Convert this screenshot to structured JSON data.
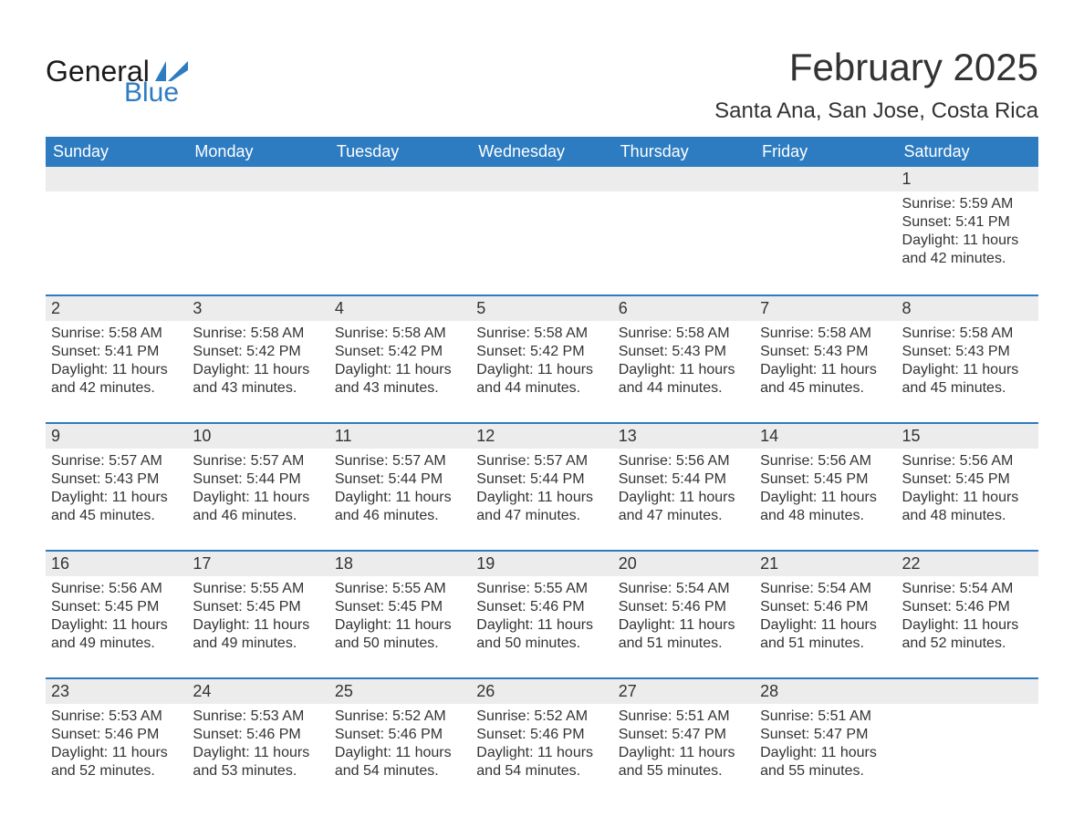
{
  "logo": {
    "word1": "General",
    "word2": "Blue",
    "text_color": "#1a1a1a",
    "accent_color": "#2d7cc1"
  },
  "header": {
    "month_year": "February 2025",
    "location": "Santa Ana, San Jose, Costa Rica"
  },
  "colors": {
    "header_bg": "#2d7cc1",
    "header_fg": "#ffffff",
    "daynum_bg": "#ececec",
    "row_divider": "#2d7cc1",
    "text": "#333333",
    "background": "#ffffff"
  },
  "days_of_week": [
    "Sunday",
    "Monday",
    "Tuesday",
    "Wednesday",
    "Thursday",
    "Friday",
    "Saturday"
  ],
  "weeks": [
    [
      {
        "day": ""
      },
      {
        "day": ""
      },
      {
        "day": ""
      },
      {
        "day": ""
      },
      {
        "day": ""
      },
      {
        "day": ""
      },
      {
        "day": "1",
        "sunrise": "Sunrise: 5:59 AM",
        "sunset": "Sunset: 5:41 PM",
        "daylight1": "Daylight: 11 hours",
        "daylight2": "and 42 minutes."
      }
    ],
    [
      {
        "day": "2",
        "sunrise": "Sunrise: 5:58 AM",
        "sunset": "Sunset: 5:41 PM",
        "daylight1": "Daylight: 11 hours",
        "daylight2": "and 42 minutes."
      },
      {
        "day": "3",
        "sunrise": "Sunrise: 5:58 AM",
        "sunset": "Sunset: 5:42 PM",
        "daylight1": "Daylight: 11 hours",
        "daylight2": "and 43 minutes."
      },
      {
        "day": "4",
        "sunrise": "Sunrise: 5:58 AM",
        "sunset": "Sunset: 5:42 PM",
        "daylight1": "Daylight: 11 hours",
        "daylight2": "and 43 minutes."
      },
      {
        "day": "5",
        "sunrise": "Sunrise: 5:58 AM",
        "sunset": "Sunset: 5:42 PM",
        "daylight1": "Daylight: 11 hours",
        "daylight2": "and 44 minutes."
      },
      {
        "day": "6",
        "sunrise": "Sunrise: 5:58 AM",
        "sunset": "Sunset: 5:43 PM",
        "daylight1": "Daylight: 11 hours",
        "daylight2": "and 44 minutes."
      },
      {
        "day": "7",
        "sunrise": "Sunrise: 5:58 AM",
        "sunset": "Sunset: 5:43 PM",
        "daylight1": "Daylight: 11 hours",
        "daylight2": "and 45 minutes."
      },
      {
        "day": "8",
        "sunrise": "Sunrise: 5:58 AM",
        "sunset": "Sunset: 5:43 PM",
        "daylight1": "Daylight: 11 hours",
        "daylight2": "and 45 minutes."
      }
    ],
    [
      {
        "day": "9",
        "sunrise": "Sunrise: 5:57 AM",
        "sunset": "Sunset: 5:43 PM",
        "daylight1": "Daylight: 11 hours",
        "daylight2": "and 45 minutes."
      },
      {
        "day": "10",
        "sunrise": "Sunrise: 5:57 AM",
        "sunset": "Sunset: 5:44 PM",
        "daylight1": "Daylight: 11 hours",
        "daylight2": "and 46 minutes."
      },
      {
        "day": "11",
        "sunrise": "Sunrise: 5:57 AM",
        "sunset": "Sunset: 5:44 PM",
        "daylight1": "Daylight: 11 hours",
        "daylight2": "and 46 minutes."
      },
      {
        "day": "12",
        "sunrise": "Sunrise: 5:57 AM",
        "sunset": "Sunset: 5:44 PM",
        "daylight1": "Daylight: 11 hours",
        "daylight2": "and 47 minutes."
      },
      {
        "day": "13",
        "sunrise": "Sunrise: 5:56 AM",
        "sunset": "Sunset: 5:44 PM",
        "daylight1": "Daylight: 11 hours",
        "daylight2": "and 47 minutes."
      },
      {
        "day": "14",
        "sunrise": "Sunrise: 5:56 AM",
        "sunset": "Sunset: 5:45 PM",
        "daylight1": "Daylight: 11 hours",
        "daylight2": "and 48 minutes."
      },
      {
        "day": "15",
        "sunrise": "Sunrise: 5:56 AM",
        "sunset": "Sunset: 5:45 PM",
        "daylight1": "Daylight: 11 hours",
        "daylight2": "and 48 minutes."
      }
    ],
    [
      {
        "day": "16",
        "sunrise": "Sunrise: 5:56 AM",
        "sunset": "Sunset: 5:45 PM",
        "daylight1": "Daylight: 11 hours",
        "daylight2": "and 49 minutes."
      },
      {
        "day": "17",
        "sunrise": "Sunrise: 5:55 AM",
        "sunset": "Sunset: 5:45 PM",
        "daylight1": "Daylight: 11 hours",
        "daylight2": "and 49 minutes."
      },
      {
        "day": "18",
        "sunrise": "Sunrise: 5:55 AM",
        "sunset": "Sunset: 5:45 PM",
        "daylight1": "Daylight: 11 hours",
        "daylight2": "and 50 minutes."
      },
      {
        "day": "19",
        "sunrise": "Sunrise: 5:55 AM",
        "sunset": "Sunset: 5:46 PM",
        "daylight1": "Daylight: 11 hours",
        "daylight2": "and 50 minutes."
      },
      {
        "day": "20",
        "sunrise": "Sunrise: 5:54 AM",
        "sunset": "Sunset: 5:46 PM",
        "daylight1": "Daylight: 11 hours",
        "daylight2": "and 51 minutes."
      },
      {
        "day": "21",
        "sunrise": "Sunrise: 5:54 AM",
        "sunset": "Sunset: 5:46 PM",
        "daylight1": "Daylight: 11 hours",
        "daylight2": "and 51 minutes."
      },
      {
        "day": "22",
        "sunrise": "Sunrise: 5:54 AM",
        "sunset": "Sunset: 5:46 PM",
        "daylight1": "Daylight: 11 hours",
        "daylight2": "and 52 minutes."
      }
    ],
    [
      {
        "day": "23",
        "sunrise": "Sunrise: 5:53 AM",
        "sunset": "Sunset: 5:46 PM",
        "daylight1": "Daylight: 11 hours",
        "daylight2": "and 52 minutes."
      },
      {
        "day": "24",
        "sunrise": "Sunrise: 5:53 AM",
        "sunset": "Sunset: 5:46 PM",
        "daylight1": "Daylight: 11 hours",
        "daylight2": "and 53 minutes."
      },
      {
        "day": "25",
        "sunrise": "Sunrise: 5:52 AM",
        "sunset": "Sunset: 5:46 PM",
        "daylight1": "Daylight: 11 hours",
        "daylight2": "and 54 minutes."
      },
      {
        "day": "26",
        "sunrise": "Sunrise: 5:52 AM",
        "sunset": "Sunset: 5:46 PM",
        "daylight1": "Daylight: 11 hours",
        "daylight2": "and 54 minutes."
      },
      {
        "day": "27",
        "sunrise": "Sunrise: 5:51 AM",
        "sunset": "Sunset: 5:47 PM",
        "daylight1": "Daylight: 11 hours",
        "daylight2": "and 55 minutes."
      },
      {
        "day": "28",
        "sunrise": "Sunrise: 5:51 AM",
        "sunset": "Sunset: 5:47 PM",
        "daylight1": "Daylight: 11 hours",
        "daylight2": "and 55 minutes."
      },
      {
        "day": ""
      }
    ]
  ]
}
